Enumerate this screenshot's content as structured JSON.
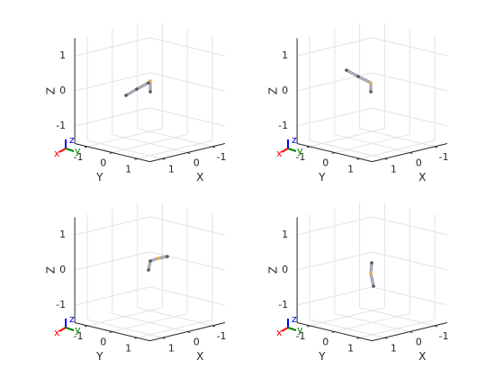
{
  "axes": [
    {
      "z_label": "Z",
      "y_label": "Y",
      "x_label": "X",
      "z_ticks": [
        "-1",
        "0",
        "1"
      ],
      "y_ticks": [
        "-1",
        "0",
        "1"
      ],
      "x_ticks": [
        "-1",
        "0",
        "1"
      ],
      "triad": {
        "x": "x",
        "y": "y",
        "z": "z"
      }
    },
    {
      "z_label": "Z",
      "y_label": "Y",
      "x_label": "X",
      "z_ticks": [
        "-1",
        "0",
        "1"
      ],
      "y_ticks": [
        "-1",
        "0",
        "1"
      ],
      "x_ticks": [
        "-1",
        "0",
        "1"
      ],
      "triad": {
        "x": "x",
        "y": "y",
        "z": "z"
      }
    },
    {
      "z_label": "Z",
      "y_label": "Y",
      "x_label": "X",
      "z_ticks": [
        "-1",
        "0",
        "1"
      ],
      "y_ticks": [
        "-1",
        "0",
        "1"
      ],
      "x_ticks": [
        "-1",
        "0",
        "1"
      ],
      "triad": {
        "x": "x",
        "y": "y",
        "z": "z"
      }
    },
    {
      "z_label": "Z",
      "y_label": "Y",
      "x_label": "X",
      "z_ticks": [
        "-1",
        "0",
        "1"
      ],
      "y_ticks": [
        "-1",
        "0",
        "1"
      ],
      "x_ticks": [
        "-1",
        "0",
        "1"
      ],
      "triad": {
        "x": "x",
        "y": "y",
        "z": "z"
      }
    }
  ]
}
